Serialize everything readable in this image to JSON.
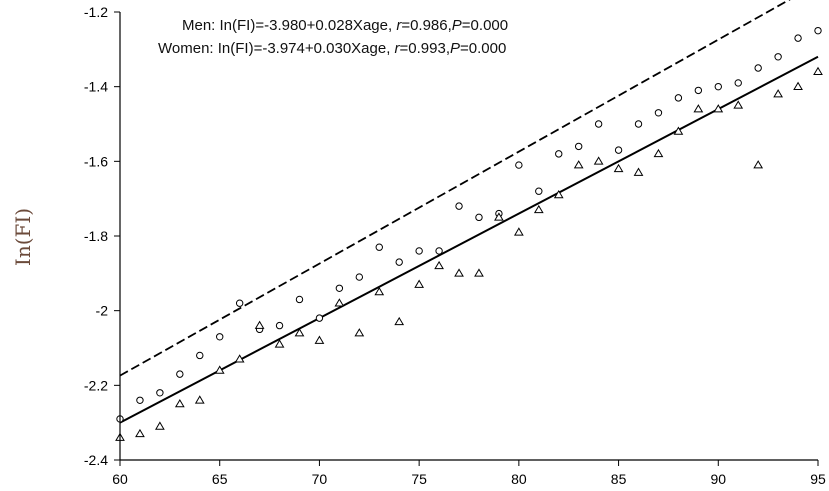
{
  "chart_data": {
    "type": "scatter",
    "title": "",
    "xlabel": "",
    "ylabel": "In(FI)",
    "xlim": [
      60,
      95
    ],
    "ylim": [
      -2.4,
      -1.2
    ],
    "xticks": [
      60,
      65,
      70,
      75,
      80,
      85,
      90,
      95
    ],
    "yticks": [
      -2.4,
      -2.2,
      -2,
      -1.8,
      -1.6,
      -1.4,
      -1.2
    ],
    "ytick_labels": [
      "-2.4",
      "-2.2",
      "-2",
      "-1.8",
      "-1.6",
      "-1.4",
      "-1.2"
    ],
    "xtick_labels": [
      "60",
      "65",
      "70",
      "75",
      "80",
      "85",
      "90",
      "95"
    ],
    "grid": false,
    "annotations": {
      "men": {
        "prefix": "Men: In(FI)=-3.980+0.028Xage, ",
        "r_label": "r",
        "r_value": "=0.986,",
        "p_label": "P",
        "p_value": "=0.000"
      },
      "women": {
        "prefix": "Women: In(FI)=-3.974+0.030Xage, ",
        "r_label": "r",
        "r_value": "=0.993,",
        "p_label": "P",
        "p_value": "=0.000"
      }
    },
    "series": [
      {
        "marker": "circle",
        "fit": {
          "intercept": -3.98,
          "slope": 0.028,
          "style": "solid"
        },
        "points": [
          [
            60,
            -2.29
          ],
          [
            61,
            -2.24
          ],
          [
            62,
            -2.22
          ],
          [
            63,
            -2.17
          ],
          [
            64,
            -2.12
          ],
          [
            65,
            -2.07
          ],
          [
            66,
            -1.98
          ],
          [
            67,
            -2.05
          ],
          [
            68,
            -2.04
          ],
          [
            69,
            -1.97
          ],
          [
            70,
            -2.02
          ],
          [
            71,
            -1.94
          ],
          [
            72,
            -1.91
          ],
          [
            73,
            -1.83
          ],
          [
            74,
            -1.87
          ],
          [
            75,
            -1.84
          ],
          [
            76,
            -1.84
          ],
          [
            77,
            -1.72
          ],
          [
            78,
            -1.75
          ],
          [
            79,
            -1.74
          ],
          [
            80,
            -1.61
          ],
          [
            81,
            -1.68
          ],
          [
            82,
            -1.58
          ],
          [
            83,
            -1.56
          ],
          [
            84,
            -1.5
          ],
          [
            85,
            -1.57
          ],
          [
            86,
            -1.5
          ],
          [
            87,
            -1.47
          ],
          [
            88,
            -1.43
          ],
          [
            89,
            -1.41
          ],
          [
            90,
            -1.4
          ],
          [
            91,
            -1.39
          ],
          [
            92,
            -1.35
          ],
          [
            93,
            -1.32
          ],
          [
            94,
            -1.27
          ],
          [
            95,
            -1.25
          ]
        ]
      },
      {
        "marker": "triangle",
        "fit": {
          "intercept": -3.974,
          "slope": 0.03,
          "style": "dashed"
        },
        "points": [
          [
            60,
            -2.34
          ],
          [
            61,
            -2.33
          ],
          [
            62,
            -2.31
          ],
          [
            63,
            -2.25
          ],
          [
            64,
            -2.24
          ],
          [
            65,
            -2.16
          ],
          [
            66,
            -2.13
          ],
          [
            67,
            -2.04
          ],
          [
            68,
            -2.09
          ],
          [
            69,
            -2.06
          ],
          [
            70,
            -2.08
          ],
          [
            71,
            -1.98
          ],
          [
            72,
            -2.06
          ],
          [
            73,
            -1.95
          ],
          [
            74,
            -2.03
          ],
          [
            75,
            -1.93
          ],
          [
            76,
            -1.88
          ],
          [
            77,
            -1.9
          ],
          [
            78,
            -1.9
          ],
          [
            79,
            -1.75
          ],
          [
            80,
            -1.79
          ],
          [
            81,
            -1.73
          ],
          [
            82,
            -1.69
          ],
          [
            83,
            -1.61
          ],
          [
            84,
            -1.6
          ],
          [
            85,
            -1.62
          ],
          [
            86,
            -1.63
          ],
          [
            87,
            -1.58
          ],
          [
            88,
            -1.52
          ],
          [
            89,
            -1.46
          ],
          [
            90,
            -1.46
          ],
          [
            91,
            -1.45
          ],
          [
            92,
            -1.61
          ],
          [
            93,
            -1.42
          ],
          [
            94,
            -1.4
          ],
          [
            95,
            -1.36
          ]
        ]
      }
    ]
  }
}
